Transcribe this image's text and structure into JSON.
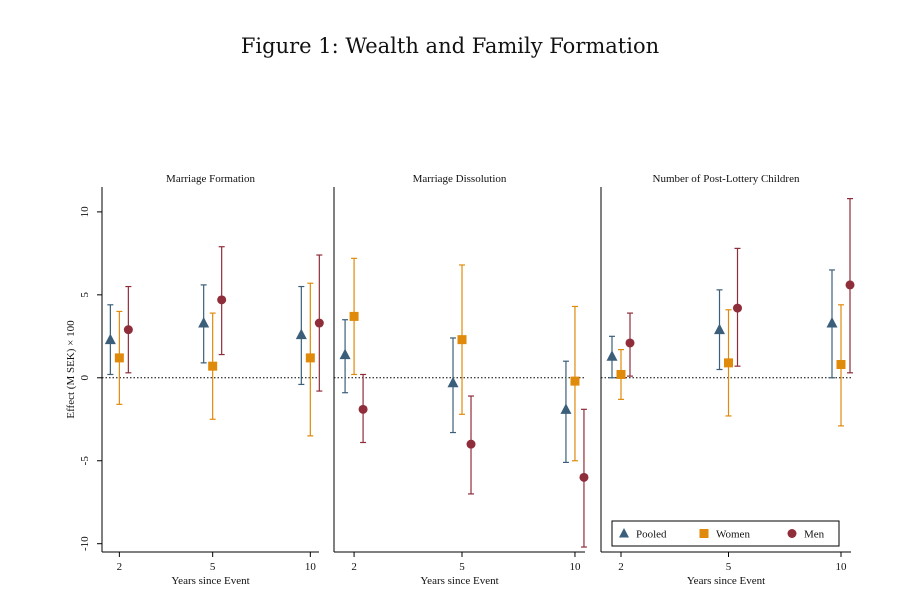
{
  "figure_title": "Figure 1: Wealth and Family Formation",
  "colors": {
    "Pooled": "#3b5f7a",
    "Women": "#e08a0b",
    "Men": "#8f2d3a",
    "axis": "#000000"
  },
  "chart_data": [
    {
      "type": "scatter",
      "title": "Marriage Formation",
      "xlabel": "Years since Event",
      "ylabel": "Effect (M SEK) × 100",
      "categories": [
        "2",
        "5",
        "10"
      ],
      "ylim": [
        -10.5,
        11.5
      ],
      "yticks": [
        10,
        5,
        0,
        -5,
        -10
      ],
      "reference_line": 0,
      "series": [
        {
          "name": "Pooled",
          "marker": "triangle",
          "values": [
            2.3,
            3.3,
            2.6
          ],
          "ci_low": [
            0.2,
            0.9,
            -0.4
          ],
          "ci_high": [
            4.4,
            5.6,
            5.5
          ]
        },
        {
          "name": "Women",
          "marker": "square",
          "values": [
            1.2,
            0.7,
            1.2
          ],
          "ci_low": [
            -1.6,
            -2.5,
            -3.5
          ],
          "ci_high": [
            4.0,
            3.9,
            5.7
          ]
        },
        {
          "name": "Men",
          "marker": "circle",
          "values": [
            2.9,
            4.7,
            3.3
          ],
          "ci_low": [
            0.3,
            1.4,
            -0.8
          ],
          "ci_high": [
            5.5,
            7.9,
            7.4
          ]
        }
      ]
    },
    {
      "type": "scatter",
      "title": "Marriage Dissolution",
      "xlabel": "Years since Event",
      "ylabel": "",
      "categories": [
        "2",
        "5",
        "10"
      ],
      "ylim": [
        -10.5,
        11.5
      ],
      "yticks": [],
      "reference_line": 0,
      "series": [
        {
          "name": "Pooled",
          "marker": "triangle",
          "values": [
            1.4,
            -0.3,
            -1.9
          ],
          "ci_low": [
            -0.9,
            -3.3,
            -5.1
          ],
          "ci_high": [
            3.5,
            2.4,
            1.0
          ]
        },
        {
          "name": "Women",
          "marker": "square",
          "values": [
            3.7,
            2.3,
            -0.2
          ],
          "ci_low": [
            0.2,
            -2.2,
            -5.0
          ],
          "ci_high": [
            7.2,
            6.8,
            4.3
          ]
        },
        {
          "name": "Men",
          "marker": "circle",
          "values": [
            -1.9,
            -4.0,
            -6.0
          ],
          "ci_low": [
            -3.9,
            -7.0,
            -10.2
          ],
          "ci_high": [
            0.2,
            -1.1,
            -1.9
          ]
        }
      ]
    },
    {
      "type": "scatter",
      "title": "Number of Post-Lottery Children",
      "xlabel": "Years since Event",
      "ylabel": "",
      "categories": [
        "2",
        "5",
        "10"
      ],
      "ylim": [
        -10.5,
        11.5
      ],
      "yticks": [],
      "reference_line": 0,
      "series": [
        {
          "name": "Pooled",
          "marker": "triangle",
          "values": [
            1.3,
            2.9,
            3.3
          ],
          "ci_low": [
            0.0,
            0.5,
            0.0
          ],
          "ci_high": [
            2.5,
            5.3,
            6.5
          ]
        },
        {
          "name": "Women",
          "marker": "square",
          "values": [
            0.2,
            0.9,
            0.8
          ],
          "ci_low": [
            -1.3,
            -2.3,
            -2.9
          ],
          "ci_high": [
            1.7,
            4.1,
            4.4
          ]
        },
        {
          "name": "Men",
          "marker": "circle",
          "values": [
            2.1,
            4.2,
            5.6
          ],
          "ci_low": [
            0.1,
            0.7,
            0.3
          ],
          "ci_high": [
            3.9,
            7.8,
            10.8
          ]
        }
      ]
    }
  ],
  "legend": {
    "position": "bottom-right",
    "items": [
      {
        "label": "Pooled",
        "marker": "triangle"
      },
      {
        "label": "Women",
        "marker": "square"
      },
      {
        "label": "Men",
        "marker": "circle"
      }
    ]
  }
}
